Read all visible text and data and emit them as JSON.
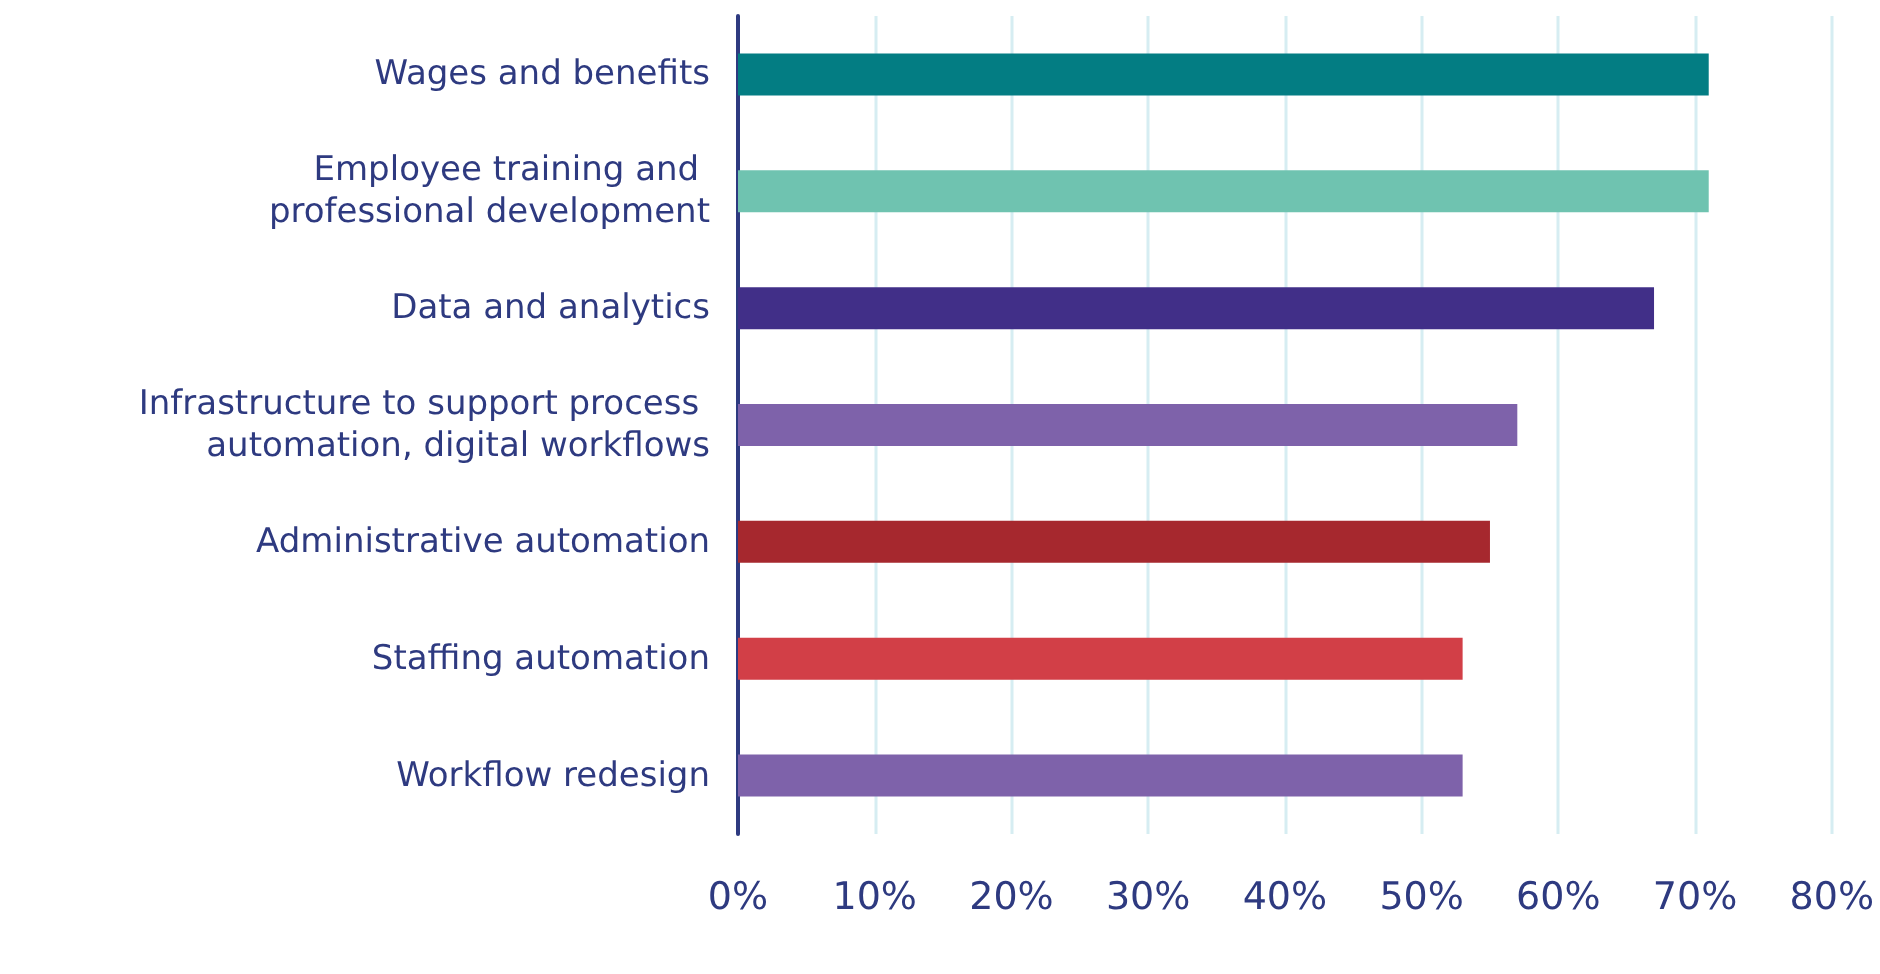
{
  "chart_data": {
    "type": "bar",
    "orientation": "horizontal",
    "categories": [
      "Wages and benefits",
      "Employee training and professional development",
      "Data and analytics",
      "Infrastructure to support process automation, digital workflows",
      "Administrative automation",
      "Staffing automation",
      "Workflow redesign"
    ],
    "values": [
      71,
      71,
      67,
      57,
      55,
      53,
      53
    ],
    "colors": [
      "#037d83",
      "#6fc3b0",
      "#412f88",
      "#7e62aa",
      "#a6282e",
      "#d23f47",
      "#7e62aa"
    ],
    "xlim": [
      0,
      80
    ],
    "xticks": [
      {
        "value": 0,
        "label": "0%"
      },
      {
        "value": 10,
        "label": "10%"
      },
      {
        "value": 20,
        "label": "20%"
      },
      {
        "value": 30,
        "label": "30%"
      },
      {
        "value": 40,
        "label": "40%"
      },
      {
        "value": 50,
        "label": "50%"
      },
      {
        "value": 60,
        "label": "60%"
      },
      {
        "value": 70,
        "label": "70%"
      },
      {
        "value": 80,
        "label": "80%"
      }
    ],
    "grid": "x"
  }
}
